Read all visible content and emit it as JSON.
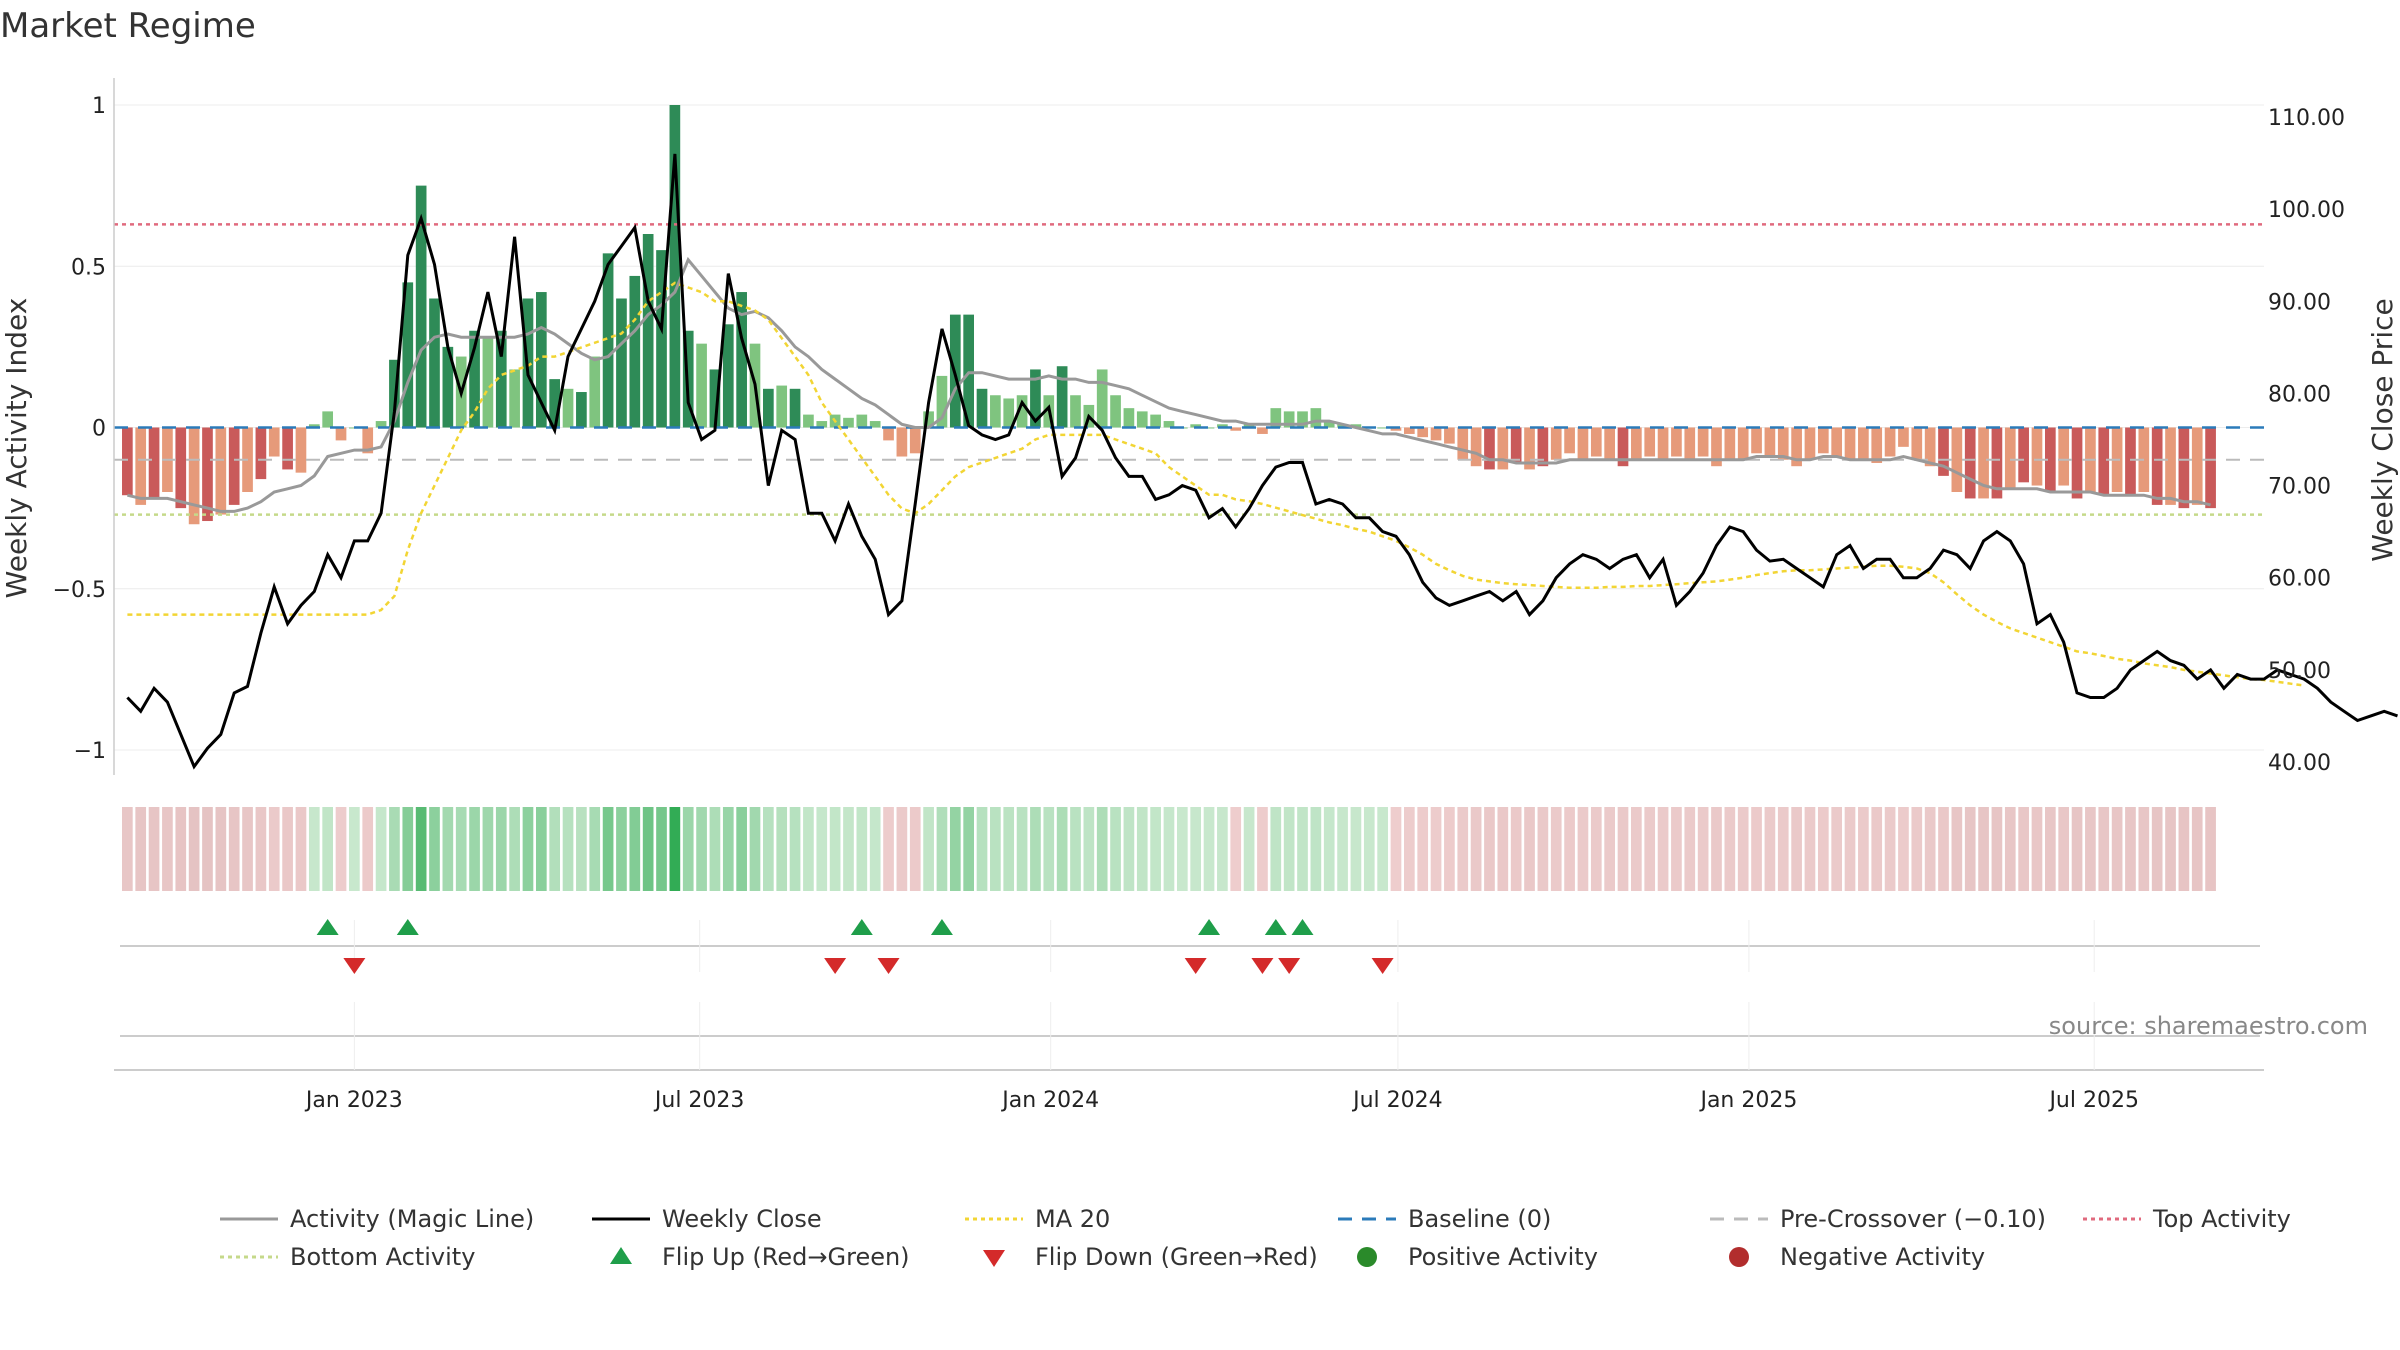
{
  "chart_data": {
    "type": "bar",
    "title": "Market Regime",
    "ylabel_left": "Weekly Activity Index",
    "ylabel_right": "Weekly Close Price",
    "ylim_left": [
      -1,
      1
    ],
    "ylim_right": [
      40,
      110
    ],
    "left_ticks": [
      "1",
      "0.5",
      "0",
      "−0.5",
      "−1"
    ],
    "left_tick_values": [
      1,
      0.5,
      0,
      -0.5,
      -1
    ],
    "right_ticks": [
      "110.00",
      "100.00",
      "90.00",
      "80.00",
      "70.00",
      "60.00",
      "50.00",
      "40.00"
    ],
    "right_tick_values": [
      110,
      100,
      90,
      80,
      70,
      60,
      50,
      40
    ],
    "x_ticks": [
      "Jan 2023",
      "Jul 2023",
      "Jan 2024",
      "Jul 2024",
      "Jan 2025",
      "Jul 2025"
    ],
    "x_tick_dates": [
      "2023-01-01",
      "2023-07-01",
      "2024-01-01",
      "2024-07-01",
      "2025-01-01",
      "2025-07-01"
    ],
    "x_range": [
      "2022-08-28",
      "2025-09-28"
    ],
    "start_week": "2022-09-04",
    "top_activity": 0.63,
    "bottom_activity": -0.27,
    "baseline": 0,
    "pre_crossover": -0.1,
    "activity": [
      -0.21,
      -0.24,
      -0.22,
      -0.2,
      -0.25,
      -0.3,
      -0.29,
      -0.27,
      -0.24,
      -0.2,
      -0.16,
      -0.09,
      -0.13,
      -0.14,
      0.01,
      0.05,
      -0.04,
      0,
      -0.08,
      0.02,
      0.21,
      0.45,
      0.75,
      0.4,
      0.25,
      0.22,
      0.3,
      0.28,
      0.3,
      0.18,
      0.4,
      0.42,
      0.15,
      0.12,
      0.11,
      0.22,
      0.54,
      0.4,
      0.47,
      0.6,
      0.55,
      1.0,
      0.3,
      0.26,
      0.18,
      0.32,
      0.42,
      0.26,
      0.12,
      0.13,
      0.12,
      0.04,
      0.02,
      0.04,
      0.03,
      0.04,
      0.02,
      -0.04,
      -0.09,
      -0.08,
      0.05,
      0.16,
      0.35,
      0.35,
      0.12,
      0.1,
      0.09,
      0.1,
      0.18,
      0.1,
      0.19,
      0.1,
      0.07,
      0.18,
      0.1,
      0.06,
      0.05,
      0.04,
      0.02,
      0,
      0.01,
      0,
      0.01,
      -0.01,
      0.01,
      -0.02,
      0.06,
      0.05,
      0.05,
      0.06,
      0.02,
      0.01,
      0.01,
      0,
      0,
      -0.01,
      -0.02,
      -0.03,
      -0.04,
      -0.05,
      -0.1,
      -0.12,
      -0.13,
      -0.13,
      -0.11,
      -0.13,
      -0.12,
      -0.1,
      -0.08,
      -0.1,
      -0.09,
      -0.1,
      -0.12,
      -0.1,
      -0.09,
      -0.1,
      -0.09,
      -0.1,
      -0.09,
      -0.12,
      -0.1,
      -0.1,
      -0.08,
      -0.09,
      -0.1,
      -0.12,
      -0.1,
      -0.08,
      -0.09,
      -0.1,
      -0.1,
      -0.11,
      -0.09,
      -0.06,
      -0.1,
      -0.12,
      -0.15,
      -0.2,
      -0.22,
      -0.22,
      -0.22,
      -0.19,
      -0.17,
      -0.18,
      -0.2,
      -0.18,
      -0.22,
      -0.2,
      -0.21,
      -0.2,
      -0.21,
      -0.2,
      -0.24,
      -0.24,
      -0.25,
      -0.24,
      -0.25
    ],
    "magic_line": [
      -0.21,
      -0.22,
      -0.22,
      -0.22,
      -0.23,
      -0.24,
      -0.25,
      -0.26,
      -0.26,
      -0.25,
      -0.23,
      -0.2,
      -0.19,
      -0.18,
      -0.15,
      -0.09,
      -0.08,
      -0.07,
      -0.07,
      -0.06,
      0.02,
      0.14,
      0.24,
      0.28,
      0.29,
      0.28,
      0.28,
      0.28,
      0.28,
      0.28,
      0.29,
      0.31,
      0.29,
      0.26,
      0.23,
      0.21,
      0.22,
      0.26,
      0.3,
      0.35,
      0.38,
      0.42,
      0.52,
      0.47,
      0.42,
      0.37,
      0.35,
      0.36,
      0.34,
      0.3,
      0.25,
      0.22,
      0.18,
      0.15,
      0.12,
      0.09,
      0.07,
      0.04,
      0.01,
      0.0,
      0.0,
      0.03,
      0.12,
      0.17,
      0.17,
      0.16,
      0.15,
      0.15,
      0.15,
      0.16,
      0.15,
      0.15,
      0.14,
      0.14,
      0.13,
      0.12,
      0.1,
      0.08,
      0.06,
      0.05,
      0.04,
      0.03,
      0.02,
      0.02,
      0.01,
      0.01,
      0.01,
      0.01,
      0.01,
      0.02,
      0.02,
      0.01,
      0.0,
      -0.01,
      -0.02,
      -0.02,
      -0.03,
      -0.04,
      -0.05,
      -0.06,
      -0.07,
      -0.08,
      -0.1,
      -0.1,
      -0.11,
      -0.11,
      -0.11,
      -0.11,
      -0.1,
      -0.1,
      -0.1,
      -0.1,
      -0.1,
      -0.1,
      -0.1,
      -0.1,
      -0.1,
      -0.1,
      -0.1,
      -0.1,
      -0.1,
      -0.1,
      -0.09,
      -0.09,
      -0.09,
      -0.1,
      -0.1,
      -0.09,
      -0.09,
      -0.1,
      -0.1,
      -0.1,
      -0.1,
      -0.09,
      -0.1,
      -0.11,
      -0.12,
      -0.14,
      -0.16,
      -0.18,
      -0.19,
      -0.19,
      -0.19,
      -0.19,
      -0.2,
      -0.2,
      -0.2,
      -0.2,
      -0.21,
      -0.21,
      -0.21,
      -0.21,
      -0.22,
      -0.22,
      -0.23,
      -0.23,
      -0.24
    ],
    "weekly_close": [
      47,
      45.5,
      48,
      46.5,
      43,
      39.5,
      41.5,
      43,
      47.5,
      48.2,
      54,
      59,
      55,
      57,
      58.5,
      62.5,
      60,
      64,
      64,
      67,
      78,
      95,
      99,
      94,
      85,
      80,
      85,
      91,
      84,
      97,
      82,
      79,
      76,
      84,
      87,
      90,
      94,
      96,
      98,
      90,
      87,
      106,
      79,
      75,
      76,
      93,
      86,
      81,
      70,
      76,
      75,
      67,
      67,
      64,
      68,
      64.5,
      62,
      56,
      57.5,
      68,
      79,
      87,
      82,
      76.5,
      75.5,
      75,
      75.5,
      79,
      77,
      78.5,
      71,
      73,
      77.5,
      76,
      73,
      71,
      71,
      68.5,
      69,
      70,
      69.5,
      66.5,
      67.5,
      65.5,
      67.5,
      70,
      72,
      72.5,
      72.5,
      68,
      68.5,
      68,
      66.5,
      66.5,
      65,
      64.5,
      62.5,
      59.5,
      57.8,
      57,
      57.5,
      58,
      58.5,
      57.5,
      58.5,
      56,
      57.5,
      60,
      61.5,
      62.5,
      62,
      61,
      62,
      62.5,
      60,
      62,
      57,
      58.5,
      60.5,
      63.5,
      65.5,
      65,
      63,
      61.8,
      62,
      61,
      60,
      59,
      62.5,
      63.5,
      61,
      62,
      62,
      60,
      60,
      61,
      63,
      62.5,
      61,
      64,
      65,
      64,
      61.5,
      55,
      56,
      53,
      47.5,
      47,
      47,
      48,
      50,
      51,
      52,
      51,
      50.5,
      49,
      50,
      48,
      49.5,
      49,
      49,
      50,
      49.5,
      49,
      48,
      46.5,
      45.5,
      44.5,
      45,
      45.5,
      45
    ],
    "ma20": [
      56,
      56,
      56,
      56,
      56,
      56,
      56,
      56,
      56,
      56,
      56,
      56,
      56,
      56,
      56,
      56,
      56,
      56,
      56,
      56.5,
      58,
      63,
      67,
      70,
      73,
      76,
      78,
      80.5,
      82,
      82.5,
      83,
      84,
      84,
      84.5,
      85,
      85.5,
      86,
      86.5,
      88,
      90,
      91,
      92,
      91.5,
      91,
      90,
      90,
      89.5,
      89,
      88,
      86,
      84,
      82,
      79,
      77,
      75,
      73,
      71,
      69,
      67.5,
      67,
      68,
      69.5,
      71,
      72,
      72.5,
      73,
      73.5,
      74,
      75,
      75.5,
      75.5,
      75.5,
      75.5,
      75.5,
      75,
      74.5,
      74,
      73.5,
      72,
      71,
      70,
      69,
      69,
      68.5,
      68.3,
      68,
      67.6,
      67.2,
      66.8,
      66.4,
      66,
      65.7,
      65.3,
      65,
      64.5,
      64,
      63.3,
      62.5,
      61.5,
      60.8,
      60.2,
      59.8,
      59.6,
      59.4,
      59.3,
      59.2,
      59.1,
      59,
      58.9,
      58.9,
      58.9,
      59,
      59,
      59.1,
      59.1,
      59.2,
      59.3,
      59.4,
      59.5,
      59.6,
      59.8,
      60,
      60.3,
      60.5,
      60.7,
      60.8,
      60.8,
      60.9,
      61,
      61.1,
      61.2,
      61.3,
      61.3,
      61.2,
      61,
      60.5,
      59.5,
      58.2,
      57,
      56,
      55.2,
      54.5,
      54,
      53.5,
      53,
      52.5,
      52,
      51.8,
      51.5,
      51.2,
      51,
      50.7,
      50.5,
      50.3,
      50,
      49.8,
      49.6,
      49.4,
      49.2,
      49,
      48.9,
      48.7,
      48.5,
      48.3
    ],
    "flip_up_dates": [
      "2022-12-18",
      "2023-01-29",
      "2023-09-24",
      "2023-11-05",
      "2024-03-24",
      "2024-04-28",
      "2024-05-12"
    ],
    "flip_down_dates": [
      "2023-01-01",
      "2023-09-10",
      "2023-10-08",
      "2024-03-17",
      "2024-04-21",
      "2024-05-05",
      "2024-06-23"
    ],
    "legend_placement": "bottom",
    "colors": {
      "magic_line": "#999999",
      "weekly_close": "#000000",
      "ma20": "#f2d534",
      "baseline": "#2b7bba",
      "pre_crossover": "#bbbbbb",
      "top_activity": "#e06a7e",
      "bottom_activity": "#c5d98a",
      "flip_up": "#1f9e4a",
      "flip_down": "#d42a2a",
      "positive": "#2a8a2a",
      "negative": "#b22d2d",
      "bar_pos_strong": "#2e8b57",
      "bar_pos_light": "#7fc47f",
      "bar_neg_strong": "#c95a5a",
      "bar_neg_light": "#e69a7a"
    }
  },
  "legend": {
    "items": [
      {
        "label": "Activity (Magic Line)",
        "kind": "line",
        "color": "#999999",
        "dash": ""
      },
      {
        "label": "Weekly Close",
        "kind": "line",
        "color": "#000000",
        "dash": ""
      },
      {
        "label": "MA 20",
        "kind": "line",
        "color": "#f2d534",
        "dash": "4 4"
      },
      {
        "label": "Baseline (0)",
        "kind": "line",
        "color": "#2b7bba",
        "dash": "14 10"
      },
      {
        "label": "Pre-Crossover (−0.10)",
        "kind": "line",
        "color": "#bbbbbb",
        "dash": "14 10"
      },
      {
        "label": "Top Activity",
        "kind": "line",
        "color": "#e06a7e",
        "dash": "4 4"
      },
      {
        "label": "Bottom Activity",
        "kind": "line",
        "color": "#c5d98a",
        "dash": "4 4"
      },
      {
        "label": "Flip Up (Red→Green)",
        "kind": "triangle-up",
        "color": "#1f9e4a",
        "dash": ""
      },
      {
        "label": "Flip Down (Green→Red)",
        "kind": "triangle-down",
        "color": "#d42a2a",
        "dash": ""
      },
      {
        "label": "Positive Activity",
        "kind": "dot",
        "color": "#2a8a2a",
        "dash": ""
      },
      {
        "label": "Negative Activity",
        "kind": "dot",
        "color": "#b22d2d",
        "dash": ""
      }
    ]
  },
  "source": "source: sharemaestro.com"
}
